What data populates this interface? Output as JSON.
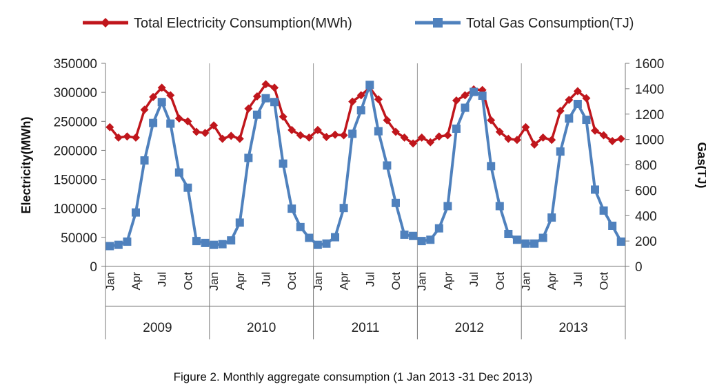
{
  "chart_data": {
    "type": "line",
    "legend_placement": "top",
    "grid": "vertical",
    "years": [
      "2009",
      "2010",
      "2011",
      "2012",
      "2013"
    ],
    "month_labels": [
      "Jan",
      "Apr",
      "Jul",
      "Oct"
    ],
    "y_left": {
      "label": "Electricity(MWh)",
      "range": [
        0,
        350000
      ],
      "ticks": [
        "0",
        "50000",
        "100000",
        "150000",
        "200000",
        "250000",
        "300000",
        "350000"
      ]
    },
    "y_right": {
      "label": "Gas(TJ)",
      "range": [
        0,
        1600
      ],
      "ticks": [
        "0",
        "200",
        "400",
        "600",
        "800",
        "1000",
        "1200",
        "1400",
        "1600"
      ]
    },
    "series": [
      {
        "name": "Total Electricity Consumption(MWh)",
        "axis": "left",
        "color": "#c0161c",
        "marker": "diamond",
        "values": [
          240000,
          222000,
          224000,
          222000,
          270000,
          292000,
          308000,
          295000,
          255000,
          250000,
          232000,
          230000,
          243000,
          220000,
          225000,
          220000,
          272000,
          293000,
          314000,
          308000,
          258000,
          235000,
          226000,
          222000,
          235000,
          223000,
          227000,
          226000,
          284000,
          295000,
          308000,
          288000,
          252000,
          232000,
          222000,
          212000,
          222000,
          214000,
          224000,
          226000,
          286000,
          295000,
          305000,
          304000,
          252000,
          232000,
          220000,
          218000,
          240000,
          210000,
          222000,
          218000,
          268000,
          287000,
          302000,
          290000,
          234000,
          226000,
          216000,
          220000
        ]
      },
      {
        "name": "Total Gas Consumption(TJ)",
        "axis": "right",
        "color": "#4f81bd",
        "marker": "square",
        "values": [
          160,
          170,
          195,
          425,
          835,
          1130,
          1295,
          1125,
          740,
          620,
          200,
          185,
          170,
          175,
          205,
          345,
          855,
          1195,
          1325,
          1295,
          810,
          455,
          310,
          225,
          170,
          180,
          230,
          460,
          1045,
          1230,
          1430,
          1065,
          795,
          500,
          250,
          240,
          200,
          210,
          300,
          475,
          1085,
          1250,
          1375,
          1345,
          790,
          475,
          255,
          210,
          180,
          180,
          225,
          385,
          905,
          1165,
          1280,
          1155,
          605,
          440,
          320,
          195
        ]
      }
    ]
  },
  "caption": "Figure 2. Monthly aggregate consumption (1 Jan 2013 -31 Dec 2013)"
}
